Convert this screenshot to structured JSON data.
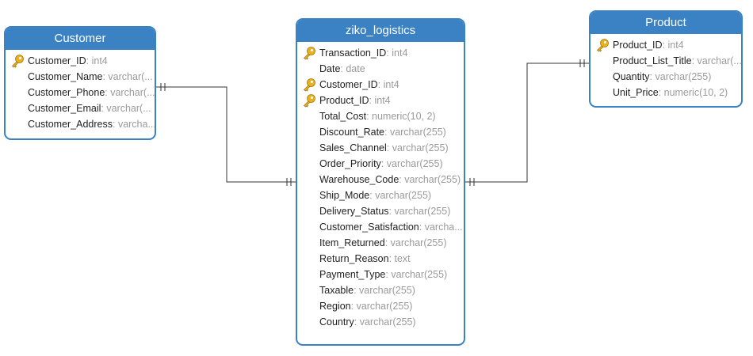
{
  "entities": {
    "customer": {
      "title": "Customer",
      "fields": [
        {
          "name": "Customer_ID",
          "type": ": int4",
          "key": true
        },
        {
          "name": "Customer_Name",
          "type": ": varchar(...",
          "key": false
        },
        {
          "name": "Customer_Phone",
          "type": ": varchar(...",
          "key": false
        },
        {
          "name": "Customer_Email",
          "type": ": varchar(...",
          "key": false
        },
        {
          "name": "Customer_Address",
          "type": ": varcha...",
          "key": false
        }
      ]
    },
    "ziko_logistics": {
      "title": "ziko_logistics",
      "fields": [
        {
          "name": "Transaction_ID",
          "type": ": int4",
          "key": true
        },
        {
          "name": "Date",
          "type": ": date",
          "key": false
        },
        {
          "name": "Customer_ID",
          "type": ": int4",
          "key": true
        },
        {
          "name": "Product_ID",
          "type": ": int4",
          "key": true
        },
        {
          "name": "Total_Cost",
          "type": ": numeric(10, 2)",
          "key": false
        },
        {
          "name": "Discount_Rate",
          "type": ": varchar(255)",
          "key": false
        },
        {
          "name": "Sales_Channel",
          "type": ": varchar(255)",
          "key": false
        },
        {
          "name": "Order_Priority",
          "type": ": varchar(255)",
          "key": false
        },
        {
          "name": "Warehouse_Code",
          "type": ": varchar(255)",
          "key": false
        },
        {
          "name": "Ship_Mode",
          "type": ": varchar(255)",
          "key": false
        },
        {
          "name": "Delivery_Status",
          "type": ": varchar(255)",
          "key": false
        },
        {
          "name": "Customer_Satisfaction",
          "type": ": varcha...",
          "key": false
        },
        {
          "name": "Item_Returned",
          "type": ": varchar(255)",
          "key": false
        },
        {
          "name": "Return_Reason",
          "type": ": text",
          "key": false
        },
        {
          "name": "Payment_Type",
          "type": ": varchar(255)",
          "key": false
        },
        {
          "name": "Taxable",
          "type": ": varchar(255)",
          "key": false
        },
        {
          "name": "Region",
          "type": ": varchar(255)",
          "key": false
        },
        {
          "name": "Country",
          "type": ": varchar(255)",
          "key": false
        }
      ]
    },
    "product": {
      "title": "Product",
      "fields": [
        {
          "name": "Product_ID",
          "type": ": int4",
          "key": true
        },
        {
          "name": "Product_List_Title",
          "type": ": varchar(...",
          "key": false
        },
        {
          "name": "Quantity",
          "type": ": varchar(255)",
          "key": false
        },
        {
          "name": "Unit_Price",
          "type": ": numeric(10, 2)",
          "key": false
        }
      ]
    }
  },
  "relations": [
    {
      "from": "customer",
      "to": "ziko_logistics",
      "cardinality": "one-to-one"
    },
    {
      "from": "ziko_logistics",
      "to": "product",
      "cardinality": "one-to-one"
    }
  ],
  "colors": {
    "header": "#3b82c4",
    "key_icon": "#e8b21e",
    "type_text": "#9a9a9a",
    "name_text": "#222222",
    "line": "#333333"
  }
}
